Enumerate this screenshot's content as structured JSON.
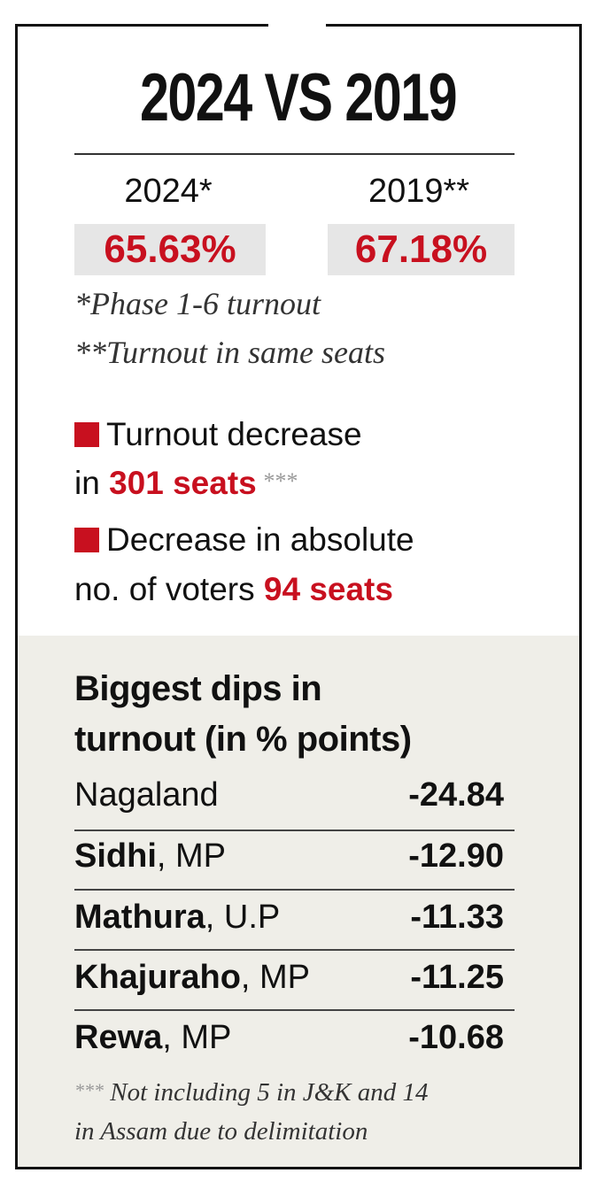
{
  "title": "2024 VS 2019",
  "comparison": [
    {
      "label": "2024*",
      "value": "65.63%"
    },
    {
      "label": "2019**",
      "value": "67.18%"
    }
  ],
  "notes": [
    "*Phase 1-6 turnout",
    "**Turnout in same seats"
  ],
  "facts": [
    {
      "line1": "Turnout  decrease",
      "prefix": "in ",
      "highlight": "301 seats",
      "suffix": " ***"
    },
    {
      "line1": "Decrease in absolute",
      "prefix": "no. of voters ",
      "highlight": "94 seats",
      "suffix": ""
    }
  ],
  "dips": {
    "heading_line1": "Biggest dips in",
    "heading_line2": "turnout (in % points)",
    "rows": [
      {
        "name": "Nagaland",
        "region": "",
        "value": "-24.84"
      },
      {
        "name": "Sidhi",
        "region": ", MP",
        "value": "-12.90"
      },
      {
        "name": "Mathura",
        "region": ", U.P",
        "value": "-11.33"
      },
      {
        "name": "Khajuraho",
        "region": ", MP",
        "value": "-11.25"
      },
      {
        "name": "Rewa",
        "region": ", MP",
        "value": "-10.68"
      }
    ]
  },
  "footnote": {
    "stars": "***",
    "line1": " Not including 5 in J&K and 14",
    "line2": "in Assam due to delimitation"
  },
  "colors": {
    "accent": "#c8101f",
    "panel": "#efeee8",
    "highlight_box": "#e6e6e6"
  }
}
